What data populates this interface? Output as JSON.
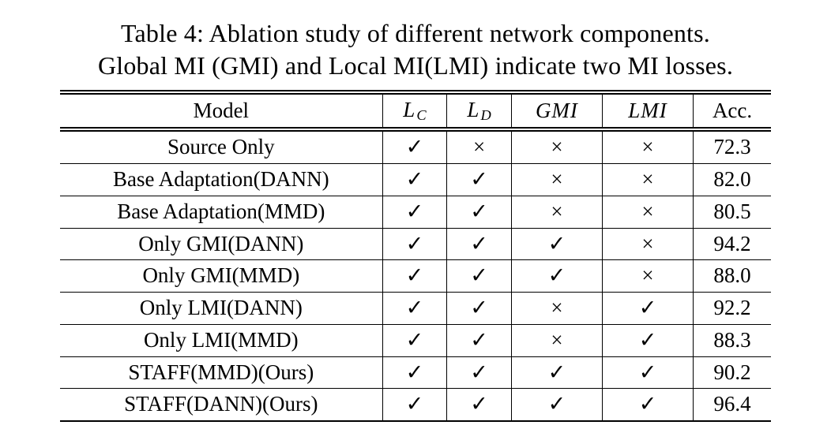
{
  "caption": {
    "line1": "Table 4: Ablation study of different network components.",
    "line2": "Global MI (GMI) and Local MI(LMI) indicate two MI losses."
  },
  "table": {
    "headers": {
      "model": "Model",
      "lc_main": "L",
      "lc_sub": "C",
      "ld_main": "L",
      "ld_sub": "D",
      "gmi": "GMI",
      "lmi": "LMI",
      "acc": "Acc."
    },
    "symbols": {
      "check": "✓",
      "cross": "×"
    },
    "rows": [
      {
        "model": "Source Only",
        "lc": "✓",
        "ld": "×",
        "gmi": "×",
        "lmi": "×",
        "acc": "72.3"
      },
      {
        "model": "Base Adaptation(DANN)",
        "lc": "✓",
        "ld": "✓",
        "gmi": "×",
        "lmi": "×",
        "acc": "82.0"
      },
      {
        "model": "Base Adaptation(MMD)",
        "lc": "✓",
        "ld": "✓",
        "gmi": "×",
        "lmi": "×",
        "acc": "80.5"
      },
      {
        "model": "Only GMI(DANN)",
        "lc": "✓",
        "ld": "✓",
        "gmi": "✓",
        "lmi": "×",
        "acc": "94.2"
      },
      {
        "model": "Only GMI(MMD)",
        "lc": "✓",
        "ld": "✓",
        "gmi": "✓",
        "lmi": "×",
        "acc": "88.0"
      },
      {
        "model": "Only LMI(DANN)",
        "lc": "✓",
        "ld": "✓",
        "gmi": "×",
        "lmi": "✓",
        "acc": "92.2"
      },
      {
        "model": "Only LMI(MMD)",
        "lc": "✓",
        "ld": "✓",
        "gmi": "×",
        "lmi": "✓",
        "acc": "88.3"
      },
      {
        "model": "STAFF(MMD)(Ours)",
        "lc": "✓",
        "ld": "✓",
        "gmi": "✓",
        "lmi": "✓",
        "acc": "90.2"
      },
      {
        "model": "STAFF(DANN)(Ours)",
        "lc": "✓",
        "ld": "✓",
        "gmi": "✓",
        "lmi": "✓",
        "acc": "96.4"
      }
    ]
  }
}
